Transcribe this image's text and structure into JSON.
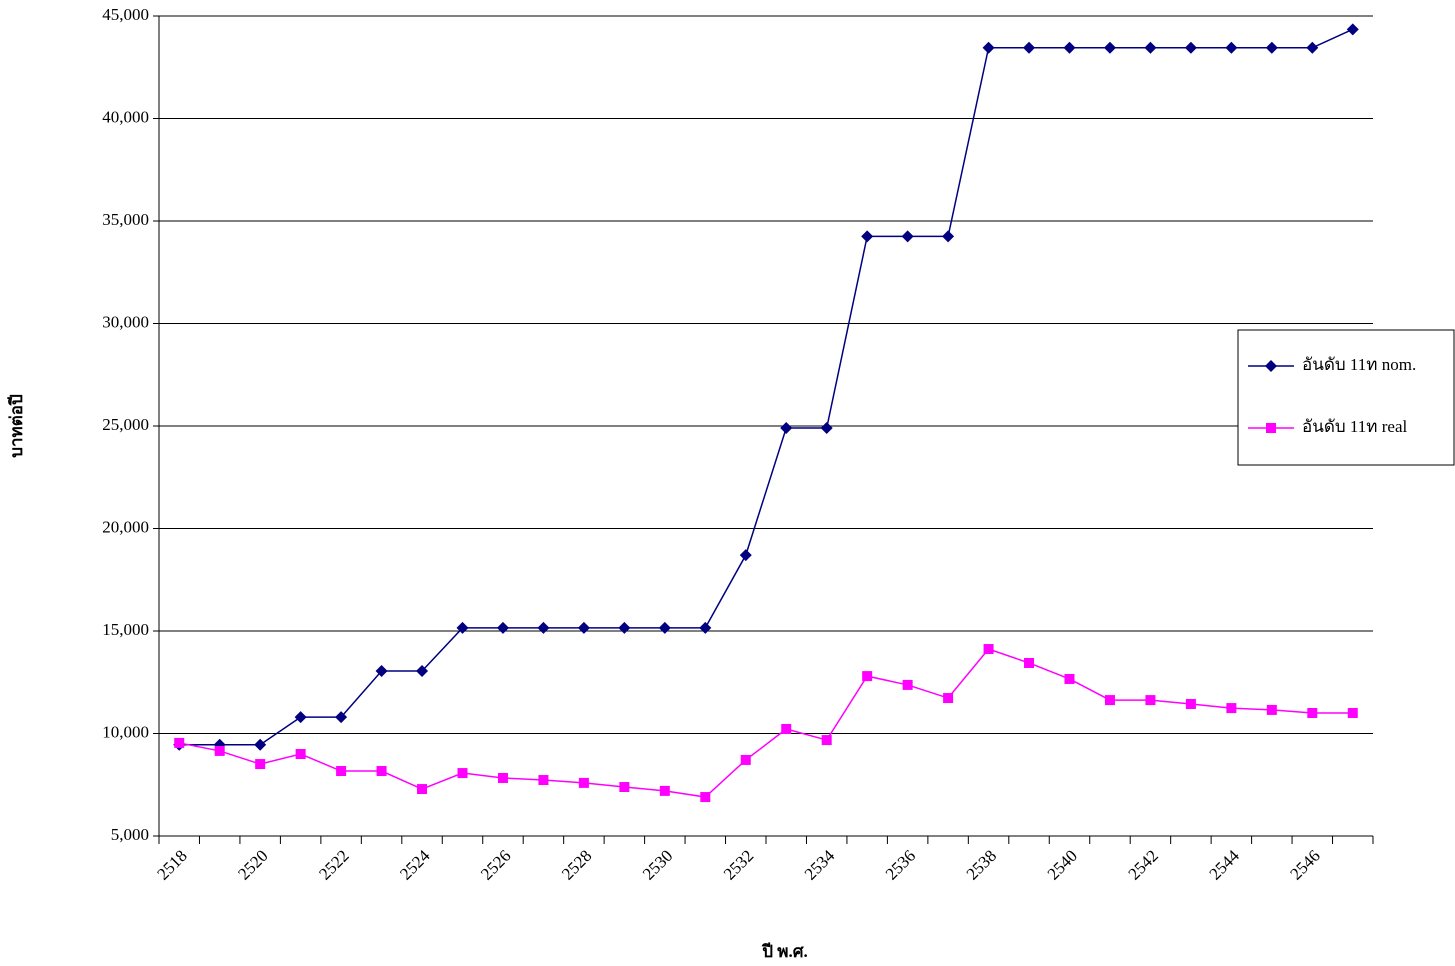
{
  "chart_data": {
    "type": "line",
    "x_label": "ปี พ.ศ.",
    "y_label": "บาทต่อปี",
    "categories": [
      "2518",
      null,
      "2520",
      null,
      "2522",
      null,
      "2524",
      null,
      "2526",
      null,
      "2528",
      null,
      "2530",
      null,
      "2532",
      null,
      "2534",
      null,
      "2536",
      null,
      "2538",
      null,
      "2540",
      null,
      "2542",
      null,
      "2544",
      null,
      "2546",
      null
    ],
    "series": [
      {
        "name": "อันดับ 11ท nom.",
        "color": "#000080",
        "marker": "diamond",
        "values": [
          9450,
          9450,
          9450,
          10800,
          10800,
          13050,
          13050,
          15150,
          15150,
          15150,
          15150,
          15150,
          15150,
          15150,
          18700,
          24900,
          24900,
          34250,
          34250,
          34250,
          43450,
          43450,
          43450,
          43450,
          43450,
          43450,
          43450,
          43450,
          43450,
          44350
        ]
      },
      {
        "name": "อันดับ 11ท real",
        "color": "#ff00ff",
        "marker": "square",
        "values": [
          9540,
          9150,
          8510,
          9000,
          8170,
          8170,
          7290,
          8070,
          7830,
          7730,
          7590,
          7390,
          7200,
          6900,
          8710,
          10220,
          9680,
          12800,
          12370,
          11730,
          14120,
          13440,
          12660,
          11630,
          11630,
          11440,
          11240,
          11150,
          11000,
          11000
        ]
      }
    ],
    "ylim": [
      5000,
      45000
    ],
    "yticks": [
      {
        "value": 5000,
        "label": "5,000"
      },
      {
        "value": 10000,
        "label": "10,000"
      },
      {
        "value": 15000,
        "label": "15,000"
      },
      {
        "value": 20000,
        "label": "20,000"
      },
      {
        "value": 25000,
        "label": "25,000"
      },
      {
        "value": 30000,
        "label": "30,000"
      },
      {
        "value": 35000,
        "label": "35,000"
      },
      {
        "value": 40000,
        "label": "40,000"
      },
      {
        "value": 45000,
        "label": "45,000"
      }
    ],
    "grid": true,
    "legend": "right"
  }
}
